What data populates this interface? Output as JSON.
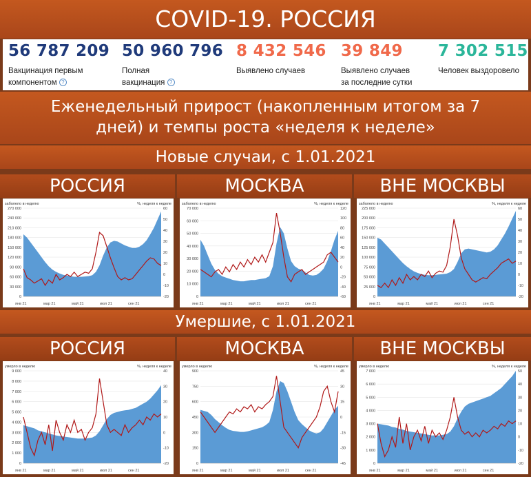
{
  "header": {
    "title": "COVID-19. РОССИЯ"
  },
  "stats": [
    {
      "value": "56 787 209",
      "label_lines": [
        "Вакцинация первым",
        "компонентом"
      ],
      "help": true,
      "color": "#1f3a7a"
    },
    {
      "value": "50 960 796",
      "label_lines": [
        "Полная",
        "вакцинация"
      ],
      "help": true,
      "color": "#1f3a7a"
    },
    {
      "value": "8 432 546",
      "label_lines": [
        "Выявлено случаев"
      ],
      "help": false,
      "color": "#f0694a"
    },
    {
      "value": "39 849",
      "label_lines": [
        "Выявлено случаев",
        "за последние сутки"
      ],
      "help": false,
      "color": "#f0694a"
    },
    {
      "value": "7 302 515",
      "label_lines": [
        "Человек выздоровело"
      ],
      "help": false,
      "color": "#2bb69a"
    }
  ],
  "subtitle_lines": [
    "Еженедельный прирост (накопленным итогом за 7",
    "дней) и темпы роста «неделя к неделе»"
  ],
  "sections": [
    {
      "title": "Новые случаи, с 1.01.2021"
    },
    {
      "title": "Умершие, с 1.01.2021"
    }
  ],
  "columns": [
    "РОССИЯ",
    "МОСКВА",
    "ВНЕ МОСКВЫ"
  ],
  "colors": {
    "area": "#5b9bd5",
    "line": "#b01818"
  },
  "chart_data": [
    {
      "type": "area",
      "section": "cases",
      "region": "РОССИЯ",
      "ylabel_left": "заболело в неделю",
      "ylabel_right": "%, неделя к неделе",
      "x_ticks": [
        "янв 21",
        "мар 21",
        "май 21",
        "июл 21",
        "сен 21"
      ],
      "left_ticks": [
        "0",
        "30 000",
        "60 000",
        "90 000",
        "120 000",
        "150 000",
        "180 000",
        "210 000",
        "240 000",
        "270 000"
      ],
      "right_ticks": [
        "-20",
        "-10",
        "0",
        "10",
        "20",
        "30",
        "40",
        "50",
        "60"
      ],
      "ylim_left": [
        0,
        270000
      ],
      "ylim_right": [
        -20,
        60
      ],
      "series": [
        {
          "kind": "area",
          "values": [
            190000,
            180000,
            165000,
            150000,
            135000,
            120000,
            105000,
            92000,
            82000,
            75000,
            70000,
            66000,
            64000,
            62000,
            60000,
            60000,
            60000,
            61000,
            62000,
            65000,
            75000,
            95000,
            125000,
            150000,
            165000,
            170000,
            168000,
            162000,
            156000,
            152000,
            148000,
            148000,
            152000,
            160000,
            172000,
            190000,
            210000,
            235000,
            260000
          ]
        },
        {
          "kind": "line",
          "values": [
            5,
            -3,
            -5,
            -8,
            -6,
            -4,
            -10,
            -5,
            -8,
            0,
            -5,
            -3,
            0,
            -2,
            2,
            -2,
            0,
            2,
            1,
            5,
            20,
            38,
            35,
            25,
            15,
            6,
            -2,
            -5,
            -3,
            -5,
            -4,
            0,
            4,
            8,
            12,
            15,
            14,
            10,
            8
          ]
        }
      ]
    },
    {
      "type": "area",
      "section": "cases",
      "region": "МОСКВА",
      "ylabel_left": "заболело в неделю",
      "ylabel_right": "%, неделя к неделе",
      "x_ticks": [
        "янв 21",
        "мар 21",
        "май 21",
        "июл 21",
        "сен 21"
      ],
      "left_ticks": [
        "0",
        "10 000",
        "20 000",
        "30 000",
        "40 000",
        "50 000",
        "60 000",
        "70 000"
      ],
      "right_ticks": [
        "-60",
        "-40",
        "-20",
        "0",
        "20",
        "40",
        "60",
        "80",
        "100",
        "120"
      ],
      "ylim_left": [
        0,
        70000
      ],
      "ylim_right": [
        -60,
        120
      ],
      "series": [
        {
          "kind": "area",
          "values": [
            45000,
            40000,
            33000,
            26000,
            21000,
            18000,
            16000,
            15000,
            14000,
            13000,
            12500,
            12000,
            12000,
            12500,
            13000,
            13000,
            13500,
            14000,
            14500,
            16000,
            24000,
            42000,
            55000,
            50000,
            38000,
            28000,
            24000,
            22000,
            21000,
            19000,
            17000,
            16500,
            17000,
            19000,
            22000,
            28000,
            36000,
            45000,
            52000
          ]
        },
        {
          "kind": "line",
          "values": [
            -5,
            -10,
            -15,
            -20,
            -10,
            -5,
            -15,
            0,
            -10,
            5,
            -5,
            10,
            0,
            15,
            5,
            20,
            10,
            25,
            10,
            30,
            50,
            110,
            70,
            20,
            -20,
            -30,
            -15,
            -10,
            -5,
            -15,
            -10,
            -5,
            0,
            5,
            10,
            25,
            30,
            20,
            10
          ]
        }
      ]
    },
    {
      "type": "area",
      "section": "cases",
      "region": "ВНЕ МОСКВЫ",
      "ylabel_left": "заболело в неделю",
      "ylabel_right": "%, неделя к неделе",
      "x_ticks": [
        "янв 21",
        "мар 21",
        "май 21",
        "июл 21",
        "сен 21"
      ],
      "left_ticks": [
        "0",
        "25 000",
        "50 000",
        "75 000",
        "100 000",
        "125 000",
        "150 000",
        "175 000",
        "200 000",
        "225 000"
      ],
      "right_ticks": [
        "-20",
        "-10",
        "0",
        "10",
        "20",
        "30",
        "40",
        "50",
        "60"
      ],
      "ylim_left": [
        0,
        225000
      ],
      "ylim_right": [
        -20,
        60
      ],
      "series": [
        {
          "kind": "area",
          "values": [
            150000,
            145000,
            135000,
            125000,
            115000,
            105000,
            95000,
            85000,
            77000,
            70000,
            64000,
            60000,
            57000,
            55000,
            54000,
            54000,
            55000,
            56000,
            57000,
            58000,
            62000,
            70000,
            88000,
            110000,
            120000,
            122000,
            120000,
            118000,
            116000,
            114000,
            112000,
            114000,
            120000,
            130000,
            145000,
            160000,
            178000,
            198000,
            218000
          ]
        },
        {
          "kind": "line",
          "values": [
            -10,
            -12,
            -8,
            -12,
            -5,
            -10,
            -3,
            -8,
            0,
            -5,
            -2,
            -5,
            0,
            -2,
            3,
            -3,
            1,
            3,
            2,
            8,
            25,
            50,
            35,
            15,
            5,
            0,
            -5,
            -7,
            -5,
            -3,
            -4,
            0,
            3,
            6,
            10,
            12,
            14,
            10,
            12
          ]
        }
      ]
    },
    {
      "type": "area",
      "section": "deaths",
      "region": "РОССИЯ",
      "ylabel_left": "умерло в неделю",
      "ylabel_right": "%, неделя к неделе",
      "x_ticks": [
        "янв 21",
        "мар 21",
        "май 21",
        "июл 21",
        "сен 21"
      ],
      "left_ticks": [
        "0",
        "1 000",
        "2 000",
        "3 000",
        "4 000",
        "5 000",
        "6 000",
        "7 000",
        "8 000",
        "9 000"
      ],
      "right_ticks": [
        "-20",
        "-10",
        "0",
        "10",
        "20",
        "30",
        "40"
      ],
      "ylim_left": [
        0,
        9000
      ],
      "ylim_right": [
        -20,
        40
      ],
      "series": [
        {
          "kind": "area",
          "values": [
            3700,
            3600,
            3500,
            3400,
            3200,
            3100,
            3000,
            2900,
            2800,
            2700,
            2650,
            2600,
            2550,
            2500,
            2450,
            2400,
            2400,
            2400,
            2450,
            2500,
            2700,
            3100,
            3700,
            4300,
            4700,
            4900,
            5000,
            5100,
            5150,
            5200,
            5300,
            5400,
            5600,
            5800,
            6000,
            6300,
            6700,
            7100,
            7600
          ]
        },
        {
          "kind": "line",
          "values": [
            10,
            0,
            -10,
            -15,
            -5,
            0,
            -8,
            5,
            -12,
            8,
            0,
            -5,
            5,
            0,
            8,
            0,
            2,
            -5,
            0,
            3,
            12,
            35,
            20,
            5,
            0,
            2,
            0,
            -2,
            5,
            0,
            3,
            5,
            8,
            5,
            10,
            8,
            12,
            10,
            12
          ]
        }
      ]
    },
    {
      "type": "area",
      "section": "deaths",
      "region": "МОСКВА",
      "ylabel_left": "умерло в неделю",
      "ylabel_right": "%, неделя к неделе",
      "x_ticks": [
        "янв 21",
        "мар 21",
        "май 21",
        "июл 21",
        "сен 21"
      ],
      "left_ticks": [
        "0",
        "150",
        "300",
        "450",
        "600",
        "750",
        "900"
      ],
      "right_ticks": [
        "-45",
        "-30",
        "-15",
        "0",
        "15",
        "30",
        "45"
      ],
      "ylim_left": [
        0,
        900
      ],
      "ylim_right": [
        -45,
        45
      ],
      "series": [
        {
          "kind": "area",
          "values": [
            520,
            510,
            500,
            470,
            430,
            400,
            370,
            345,
            325,
            315,
            310,
            305,
            305,
            310,
            320,
            330,
            340,
            350,
            370,
            400,
            520,
            700,
            800,
            780,
            700,
            600,
            500,
            420,
            380,
            350,
            320,
            300,
            290,
            300,
            340,
            400,
            460,
            520,
            560
          ]
        },
        {
          "kind": "line",
          "values": [
            5,
            0,
            -5,
            -10,
            -15,
            -10,
            -5,
            0,
            5,
            3,
            8,
            5,
            10,
            8,
            12,
            5,
            10,
            8,
            12,
            15,
            20,
            40,
            15,
            -10,
            -15,
            -20,
            -25,
            -30,
            -20,
            -15,
            -10,
            -5,
            0,
            10,
            25,
            30,
            15,
            5,
            25
          ]
        }
      ]
    },
    {
      "type": "area",
      "section": "deaths",
      "region": "ВНЕ МОСКВЫ",
      "ylabel_left": "умерло в неделю",
      "ylabel_right": "%, неделя к неделе",
      "x_ticks": [
        "янв 21",
        "мар 21",
        "май 21",
        "июл 21",
        "сен 21"
      ],
      "left_ticks": [
        "0",
        "1 000",
        "2 000",
        "3 000",
        "4 000",
        "5 000",
        "6 000",
        "7 000"
      ],
      "right_ticks": [
        "-20",
        "-10",
        "0",
        "10",
        "20",
        "30",
        "40",
        "50"
      ],
      "ylim_left": [
        0,
        7000
      ],
      "ylim_right": [
        -20,
        50
      ],
      "series": [
        {
          "kind": "area",
          "values": [
            3000,
            2950,
            2900,
            2850,
            2750,
            2700,
            2600,
            2550,
            2450,
            2400,
            2350,
            2300,
            2250,
            2200,
            2150,
            2100,
            2100,
            2100,
            2150,
            2200,
            2400,
            2800,
            3400,
            3900,
            4300,
            4500,
            4600,
            4700,
            4800,
            4900,
            5000,
            5100,
            5300,
            5500,
            5700,
            6000,
            6300,
            6600,
            7000
          ]
        },
        {
          "kind": "line",
          "values": [
            10,
            -5,
            -15,
            -10,
            0,
            -8,
            15,
            -5,
            10,
            -10,
            0,
            5,
            -3,
            8,
            -5,
            5,
            0,
            3,
            -2,
            5,
            15,
            30,
            15,
            5,
            2,
            4,
            0,
            3,
            0,
            5,
            3,
            5,
            8,
            6,
            10,
            8,
            12,
            10,
            12
          ]
        }
      ]
    }
  ]
}
